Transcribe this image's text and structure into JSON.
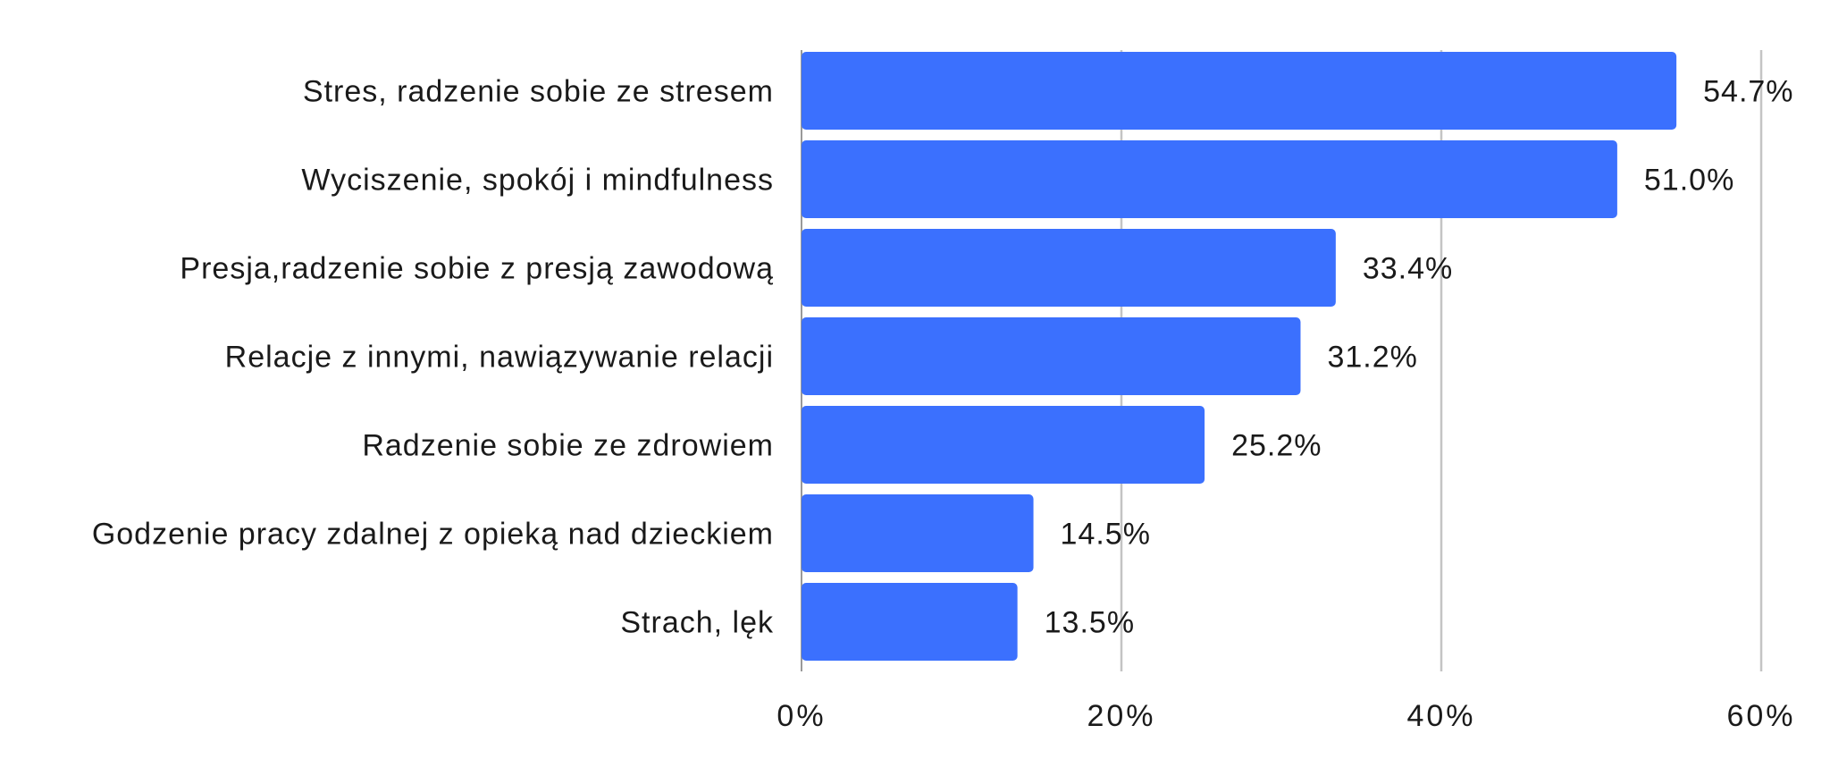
{
  "chart_data": {
    "type": "bar",
    "orientation": "horizontal",
    "categories": [
      "Stres, radzenie sobie ze stresem",
      "Wyciszenie, spokój i mindfulness",
      "Presja,radzenie sobie z presją zawodową",
      "Relacje z innymi, nawiązywanie relacji",
      "Radzenie sobie ze zdrowiem",
      "Godzenie pracy zdalnej z opieką nad dzieckiem",
      "Strach, lęk"
    ],
    "values": [
      54.7,
      51.0,
      33.4,
      31.2,
      25.2,
      14.5,
      13.5
    ],
    "value_labels": [
      "54.7%",
      "51.0%",
      "33.4%",
      "31.2%",
      "25.2%",
      "14.5%",
      "13.5%"
    ],
    "xlim": [
      0,
      60
    ],
    "x_ticks": [
      0,
      20,
      40,
      60
    ],
    "x_tick_labels": [
      "0%",
      "20%",
      "40%",
      "60%"
    ],
    "grid": true,
    "legend": "none",
    "bar_color": "#3b70fe"
  }
}
